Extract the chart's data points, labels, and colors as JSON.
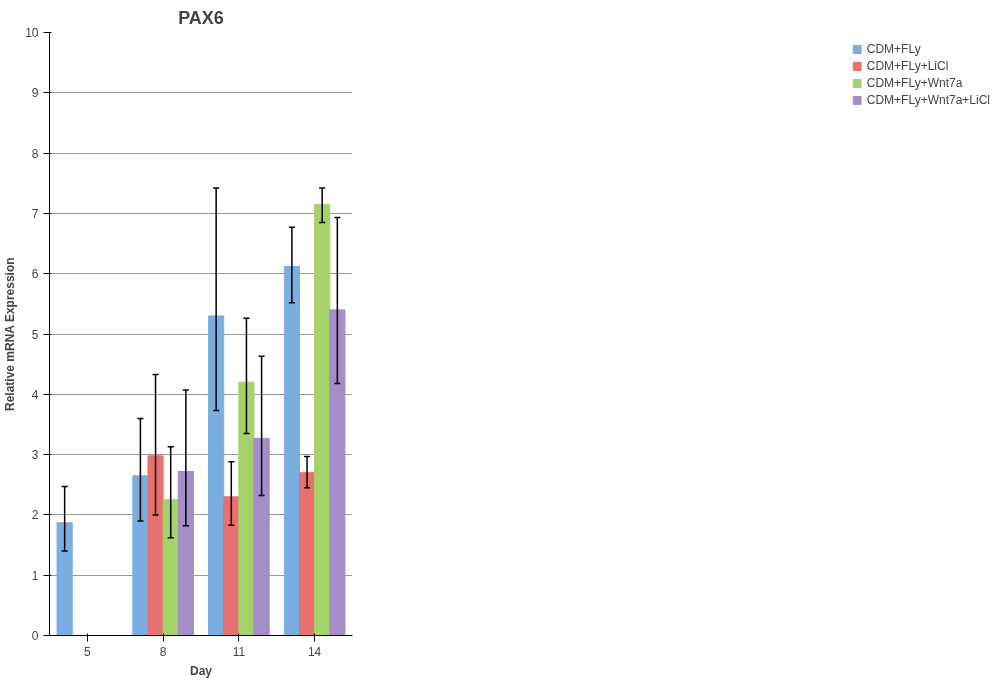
{
  "chart_data": {
    "type": "bar",
    "title": "PAX6",
    "xlabel": "Day",
    "ylabel": "Relative mRNA Expression",
    "categories": [
      "5",
      "8",
      "11",
      "14"
    ],
    "series": [
      {
        "name": "CDM+FLy",
        "color": "#7aaee0",
        "values": [
          1.87,
          2.65,
          5.3,
          6.12
        ],
        "errors": [
          [
            1.4,
            2.47
          ],
          [
            1.9,
            3.6
          ],
          [
            3.73,
            7.42
          ],
          [
            5.52,
            6.77
          ]
        ]
      },
      {
        "name": "CDM+FLy+LiCl",
        "color": "#e8716f",
        "values": [
          null,
          2.98,
          2.3,
          2.7
        ],
        "errors": [
          null,
          [
            2.0,
            4.33
          ],
          [
            1.83,
            2.88
          ],
          [
            2.45,
            2.97
          ]
        ]
      },
      {
        "name": "CDM+FLy+Wnt7a",
        "color": "#a6d26a",
        "values": [
          null,
          2.25,
          4.2,
          7.15
        ],
        "errors": [
          null,
          [
            1.62,
            3.13
          ],
          [
            3.35,
            5.26
          ],
          [
            6.85,
            7.42
          ]
        ]
      },
      {
        "name": "CDM+FLy+Wnt7a+LiCl",
        "color": "#a68cc8",
        "values": [
          null,
          2.72,
          3.27,
          5.4
        ],
        "errors": [
          null,
          [
            1.82,
            4.07
          ],
          [
            2.32,
            4.63
          ],
          [
            4.18,
            6.93
          ]
        ]
      }
    ],
    "ylim": [
      0,
      10
    ],
    "yticks": [
      0,
      1,
      2,
      3,
      4,
      5,
      6,
      7,
      8,
      9,
      10
    ],
    "grid": "y",
    "legend": "right"
  }
}
